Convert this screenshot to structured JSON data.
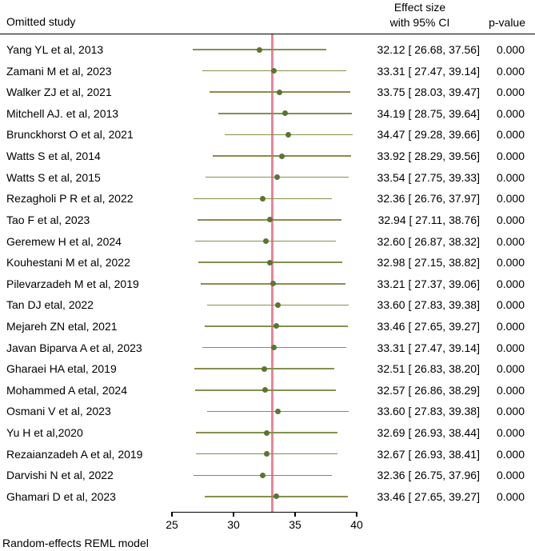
{
  "header": {
    "omitted_study": "Omitted study",
    "effect_size_line1": "Effect size",
    "effect_size_line2": "with 95% CI",
    "p_value": "p-value"
  },
  "colors": {
    "ci_line": "#82914f",
    "marker": "#5c7430",
    "ref_line": "#ee849b",
    "rule": "#000000",
    "text": "#000000",
    "background": "#ffffff"
  },
  "chart_data": {
    "type": "scatter",
    "variant": "forest-plot-leave-one-out",
    "title": "",
    "xlabel": "",
    "ylabel": "",
    "xlim": [
      25,
      40
    ],
    "x_ticks": [
      25,
      30,
      35,
      40
    ],
    "grid": false,
    "ref_line_x": 33.15,
    "footer": "Random-effects REML model",
    "columns": [
      "Omitted study",
      "Effect size with 95% CI",
      "p-value"
    ],
    "studies": [
      {
        "label": "Yang YL et al, 2013",
        "effect": 32.12,
        "ci_low": 26.68,
        "ci_high": 37.56,
        "display": "32.12 [ 26.68, 37.56]",
        "p": "0.000"
      },
      {
        "label": "Zamani M et al, 2023",
        "effect": 33.31,
        "ci_low": 27.47,
        "ci_high": 39.14,
        "display": "33.31 [ 27.47, 39.14]",
        "p": "0.000"
      },
      {
        "label": "Walker ZJ et al, 2021",
        "effect": 33.75,
        "ci_low": 28.03,
        "ci_high": 39.47,
        "display": "33.75 [ 28.03, 39.47]",
        "p": "0.000"
      },
      {
        "label": "Mitchell AJ. et al, 2013",
        "effect": 34.19,
        "ci_low": 28.75,
        "ci_high": 39.64,
        "display": "34.19 [ 28.75, 39.64]",
        "p": "0.000"
      },
      {
        "label": "Brunckhorst O et al, 2021",
        "effect": 34.47,
        "ci_low": 29.28,
        "ci_high": 39.66,
        "display": "34.47 [ 29.28, 39.66]",
        "p": "0.000"
      },
      {
        "label": "Watts S et al, 2014",
        "effect": 33.92,
        "ci_low": 28.29,
        "ci_high": 39.56,
        "display": "33.92 [ 28.29, 39.56]",
        "p": "0.000"
      },
      {
        "label": "Watts S et al, 2015",
        "effect": 33.54,
        "ci_low": 27.75,
        "ci_high": 39.33,
        "display": "33.54 [ 27.75, 39.33]",
        "p": "0.000"
      },
      {
        "label": "Rezagholi P R et al, 2022",
        "effect": 32.36,
        "ci_low": 26.76,
        "ci_high": 37.97,
        "display": "32.36 [ 26.76, 37.97]",
        "p": "0.000"
      },
      {
        "label": "Tao F et al, 2023",
        "effect": 32.94,
        "ci_low": 27.11,
        "ci_high": 38.76,
        "display": "32.94 [ 27.11, 38.76]",
        "p": "0.000"
      },
      {
        "label": "Geremew H et al, 2024",
        "effect": 32.6,
        "ci_low": 26.87,
        "ci_high": 38.32,
        "display": "32.60 [ 26.87, 38.32]",
        "p": "0.000"
      },
      {
        "label": "Kouhestani M et al, 2022",
        "effect": 32.98,
        "ci_low": 27.15,
        "ci_high": 38.82,
        "display": "32.98 [ 27.15, 38.82]",
        "p": "0.000"
      },
      {
        "label": "Pilevarzadeh M et al, 2019",
        "effect": 33.21,
        "ci_low": 27.37,
        "ci_high": 39.06,
        "display": "33.21 [ 27.37, 39.06]",
        "p": "0.000"
      },
      {
        "label": "Tan DJ etal, 2022",
        "effect": 33.6,
        "ci_low": 27.83,
        "ci_high": 39.38,
        "display": "33.60 [ 27.83, 39.38]",
        "p": "0.000"
      },
      {
        "label": "Mejareh ZN etal, 2021",
        "effect": 33.46,
        "ci_low": 27.65,
        "ci_high": 39.27,
        "display": "33.46 [ 27.65, 39.27]",
        "p": "0.000"
      },
      {
        "label": "Javan Biparva A et al, 2023",
        "effect": 33.31,
        "ci_low": 27.47,
        "ci_high": 39.14,
        "display": "33.31 [ 27.47, 39.14]",
        "p": "0.000"
      },
      {
        "label": "Gharaei HA etal, 2019",
        "effect": 32.51,
        "ci_low": 26.83,
        "ci_high": 38.2,
        "display": "32.51 [ 26.83, 38.20]",
        "p": "0.000"
      },
      {
        "label": "Mohammed A etal, 2024",
        "effect": 32.57,
        "ci_low": 26.86,
        "ci_high": 38.29,
        "display": "32.57 [ 26.86, 38.29]",
        "p": "0.000"
      },
      {
        "label": "Osmani V et al, 2023",
        "effect": 33.6,
        "ci_low": 27.83,
        "ci_high": 39.38,
        "display": "33.60 [ 27.83, 39.38]",
        "p": "0.000"
      },
      {
        "label": "Yu H et al,2020",
        "effect": 32.69,
        "ci_low": 26.93,
        "ci_high": 38.44,
        "display": "32.69 [ 26.93, 38.44]",
        "p": "0.000"
      },
      {
        "label": "Rezaianzadeh A et al, 2019",
        "effect": 32.67,
        "ci_low": 26.93,
        "ci_high": 38.41,
        "display": "32.67 [ 26.93, 38.41]",
        "p": "0.000"
      },
      {
        "label": "Darvishi N et al, 2022",
        "effect": 32.36,
        "ci_low": 26.75,
        "ci_high": 37.96,
        "display": "32.36 [ 26.75, 37.96]",
        "p": "0.000"
      },
      {
        "label": "Ghamari D et al, 2023",
        "effect": 33.46,
        "ci_low": 27.65,
        "ci_high": 39.27,
        "display": "33.46 [ 27.65, 39.27]",
        "p": "0.000"
      }
    ]
  }
}
